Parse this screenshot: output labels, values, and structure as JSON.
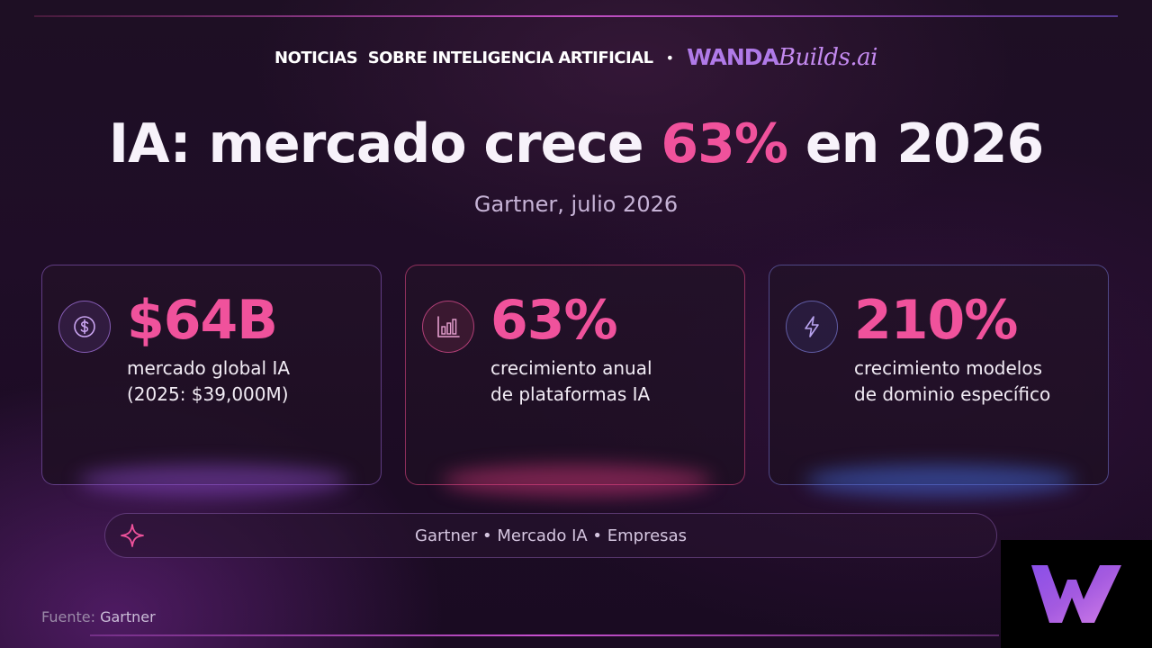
{
  "header": {
    "text": "NOTICIAS  SOBRE INTELIGENCIA ARTIFICIAL",
    "separator": "•",
    "brand_wanda": "WANDA",
    "brand_builds": "Builds.ai"
  },
  "title": {
    "prefix": "IA: mercado crece ",
    "accent": "63%",
    "suffix": " en 2026"
  },
  "subtitle": "Gartner, julio 2026",
  "cards": [
    {
      "icon": "dollar-icon",
      "value": "$64B",
      "line1": "mercado global IA",
      "line2": "(2025: $39,000M)"
    },
    {
      "icon": "bar-chart-icon",
      "value": "63%",
      "line1": "crecimiento anual",
      "line2": "de plataformas IA"
    },
    {
      "icon": "lightning-icon",
      "value": "210%",
      "line1": "crecimiento modelos",
      "line2": "de dominio específico"
    }
  ],
  "tags": {
    "icon": "sparkle-icon",
    "text": "Gartner • Mercado IA • Empresas"
  },
  "source": {
    "label": "Fuente:",
    "name": "Gartner"
  },
  "logo": {
    "icon": "w-logo-icon"
  },
  "colors": {
    "accent_pink": "#f0529c",
    "brand_purple": "#b07ae8",
    "background": "#1e0f24"
  }
}
